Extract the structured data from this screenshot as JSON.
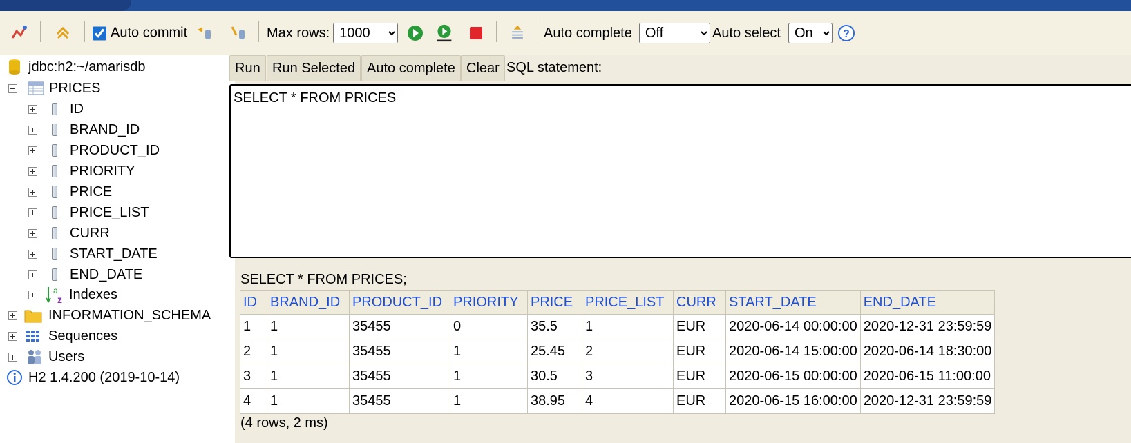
{
  "toolbar": {
    "auto_commit_label": "Auto commit",
    "auto_commit_checked": true,
    "max_rows_label": "Max rows:",
    "max_rows_value": "1000",
    "auto_complete_label": "Auto complete",
    "auto_complete_value": "Off",
    "auto_select_label": "Auto select",
    "auto_select_value": "On"
  },
  "sidebar": {
    "connection": "jdbc:h2:~/amarisdb",
    "table": "PRICES",
    "columns": [
      "ID",
      "BRAND_ID",
      "PRODUCT_ID",
      "PRIORITY",
      "PRICE",
      "PRICE_LIST",
      "CURR",
      "START_DATE",
      "END_DATE"
    ],
    "indexes": "Indexes",
    "information_schema": "INFORMATION_SCHEMA",
    "sequences": "Sequences",
    "users": "Users",
    "version": "H2 1.4.200 (2019-10-14)"
  },
  "main": {
    "run_label": "Run",
    "run_selected_label": "Run Selected",
    "auto_complete_label": "Auto complete",
    "clear_label": "Clear",
    "sql_statement_label": "SQL statement:",
    "sql_text": "SELECT * FROM PRICES",
    "result_title": "SELECT * FROM PRICES;",
    "row_count": "(4 rows, 2 ms)"
  },
  "results": {
    "headers": [
      "ID",
      "BRAND_ID",
      "PRODUCT_ID",
      "PRIORITY",
      "PRICE",
      "PRICE_LIST",
      "CURR",
      "START_DATE",
      "END_DATE"
    ],
    "rows": [
      [
        "1",
        "1",
        "35455",
        "0",
        "35.5",
        "1",
        "EUR",
        "2020-06-14 00:00:00",
        "2020-12-31 23:59:59"
      ],
      [
        "2",
        "1",
        "35455",
        "1",
        "25.45",
        "2",
        "EUR",
        "2020-06-14 15:00:00",
        "2020-06-14 18:30:00"
      ],
      [
        "3",
        "1",
        "35455",
        "1",
        "30.5",
        "3",
        "EUR",
        "2020-06-15 00:00:00",
        "2020-06-15 11:00:00"
      ],
      [
        "4",
        "1",
        "35455",
        "1",
        "38.95",
        "4",
        "EUR",
        "2020-06-15 16:00:00",
        "2020-12-31 23:59:59"
      ]
    ]
  },
  "colors": {
    "top_band": "#23509a",
    "header_text": "#1f4fd0",
    "run_icon": "#2a9a3a",
    "stop_icon": "#e0262b",
    "help_icon": "#2f6bd6"
  },
  "icons": [
    "disconnect-icon",
    "refresh-icon",
    "rollback-icon",
    "commit-icon",
    "run-icon",
    "run-selected-icon",
    "stop-icon",
    "history-icon",
    "help-icon"
  ]
}
